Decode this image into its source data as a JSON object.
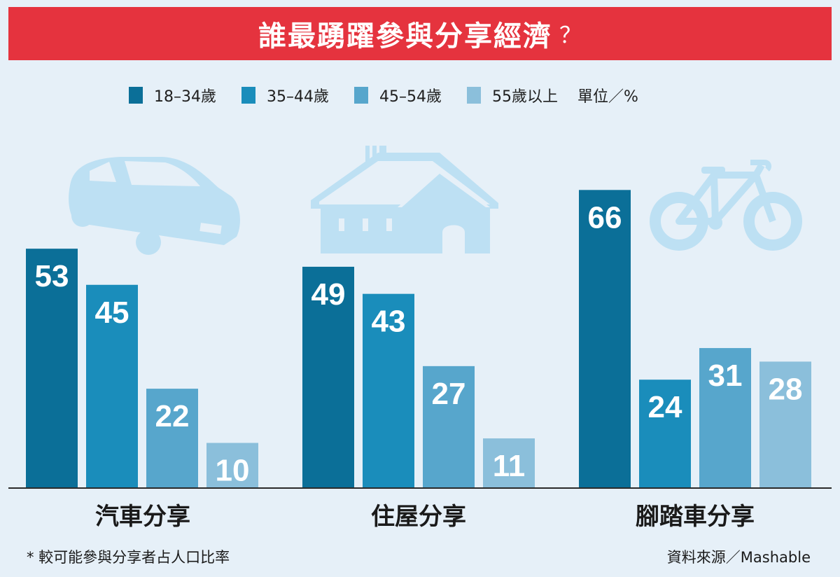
{
  "title": "誰最踴躍參與分享經濟",
  "title_mark": "？",
  "unit": "單位／%",
  "footnote": "* 較可能參與分享者占人口比率",
  "source": "資料來源／Mashable",
  "colors": {
    "header": "#e5333e",
    "background": "#e6f0f8",
    "icon": "#bde0f3",
    "series": [
      "#0b6f98",
      "#1a8dbb",
      "#57a6cc",
      "#8bbfdb"
    ]
  },
  "icons": [
    "car-icon",
    "house-icon",
    "bicycle-icon"
  ],
  "chart_data": {
    "type": "bar",
    "title": "誰最踴躍參與分享經濟？",
    "categories": [
      "汽車分享",
      "住屋分享",
      "腳踏車分享"
    ],
    "series": [
      {
        "name": "18–34歲",
        "values": [
          53,
          49,
          66
        ]
      },
      {
        "name": "35–44歲",
        "values": [
          45,
          43,
          24
        ]
      },
      {
        "name": "45–54歲",
        "values": [
          22,
          27,
          31
        ]
      },
      {
        "name": "55歲以上",
        "values": [
          10,
          11,
          28
        ]
      }
    ],
    "ylim": [
      0,
      70
    ],
    "grid": false,
    "legend": "top"
  }
}
